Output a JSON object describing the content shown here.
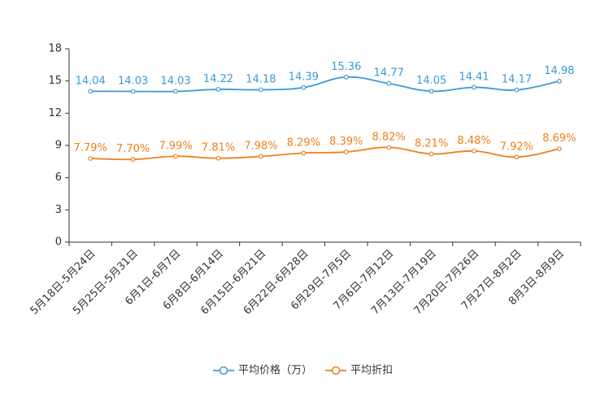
{
  "chart_data": {
    "type": "line",
    "title": "",
    "xlabel": "",
    "ylabel": "",
    "ylim": [
      0,
      18
    ],
    "yticks": [
      0,
      3,
      6,
      9,
      12,
      15,
      18
    ],
    "grid": false,
    "legend_position": "bottom-center",
    "categories": [
      "5月18日-5月24日",
      "5月25日-5月31日",
      "6月1日-6月7日",
      "6月8日-6月14日",
      "6月15日-6月21日",
      "6月22日-6月28日",
      "6月29日-7月5日",
      "7月6日-7月12日",
      "7月13日-7月19日",
      "7月20日-7月26日",
      "7月27日-8月2日",
      "8月3日-8月9日"
    ],
    "series": [
      {
        "name": "平均价格（万）",
        "color": "#3a9bd5",
        "values": [
          14.04,
          14.03,
          14.03,
          14.22,
          14.18,
          14.39,
          15.36,
          14.77,
          14.05,
          14.41,
          14.17,
          14.98
        ],
        "labels": [
          "14.04",
          "14.03",
          "14.03",
          "14.22",
          "14.18",
          "14.39",
          "15.36",
          "14.77",
          "14.05",
          "14.41",
          "14.17",
          "14.98"
        ]
      },
      {
        "name": "平均折扣",
        "color": "#f07f1b",
        "values": [
          7.79,
          7.7,
          7.99,
          7.81,
          7.98,
          8.29,
          8.39,
          8.82,
          8.21,
          8.48,
          7.92,
          8.69
        ],
        "labels": [
          "7.79%",
          "7.70%",
          "7.99%",
          "7.81%",
          "7.98%",
          "8.29%",
          "8.39%",
          "8.82%",
          "8.21%",
          "8.48%",
          "7.92%",
          "8.69%"
        ]
      }
    ]
  }
}
